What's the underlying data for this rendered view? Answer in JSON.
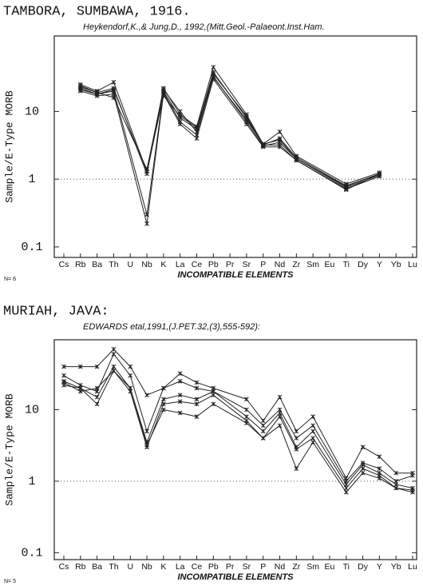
{
  "chart_data": [
    {
      "type": "line",
      "title": "TAMBORA,  SUMBAWA, 1916.",
      "subtitle": "Heykendorf,K.,& Jung,D., 1992,(Mitt.Geol.-Palaeont.Inst.Ham.",
      "ylabel": "Sample/E-Type MORB",
      "xlabel": "INCOMPATIBLE ELEMENTS",
      "note": "N= 6",
      "categories": [
        "Cs",
        "Rb",
        "Ba",
        "Th",
        "U",
        "Nb",
        "K",
        "La",
        "Ce",
        "Pb",
        "Pr",
        "Sr",
        "P",
        "Nd",
        "Zr",
        "Sm",
        "Eu",
        "Ti",
        "Dy",
        "Y",
        "Yb",
        "Lu"
      ],
      "log_scale": true,
      "ylim": [
        0.07,
        130
      ],
      "yticks": [
        0.1,
        1,
        10
      ],
      "reference_line": 1,
      "series": [
        {
          "color": "#222",
          "values": [
            null,
            25,
            20,
            27,
            null,
            1.3,
            22,
            9,
            6,
            45,
            null,
            9,
            3.3,
            5,
            2.2,
            null,
            null,
            0.85,
            null,
            1.25,
            null,
            null
          ]
        },
        {
          "color": "#222",
          "values": [
            null,
            23,
            19,
            22,
            null,
            1.2,
            20,
            8,
            5.5,
            38,
            null,
            8,
            3.2,
            4,
            2.1,
            null,
            null,
            0.8,
            null,
            1.2,
            null,
            null
          ]
        },
        {
          "color": "#222",
          "values": [
            null,
            21,
            18,
            20,
            null,
            0.3,
            19,
            7,
            4.5,
            33,
            null,
            7,
            3.1,
            3.5,
            2,
            null,
            null,
            0.75,
            null,
            1.15,
            null,
            null
          ]
        },
        {
          "color": "#222",
          "values": [
            null,
            20,
            17,
            18,
            null,
            0.22,
            18,
            6.5,
            4,
            30,
            null,
            6.5,
            3,
            3,
            1.9,
            null,
            null,
            0.7,
            null,
            1.2,
            null,
            null
          ]
        },
        {
          "color": "#222",
          "values": [
            null,
            24,
            19,
            16,
            null,
            1.4,
            21,
            10,
            5,
            36,
            null,
            8.5,
            3.2,
            3.2,
            1.9,
            null,
            null,
            0.72,
            null,
            1.1,
            null,
            null
          ]
        },
        {
          "color": "#222",
          "values": [
            null,
            22,
            18,
            21,
            null,
            1.3,
            17,
            8.5,
            5.8,
            32,
            null,
            7.5,
            3.3,
            3.8,
            2,
            null,
            null,
            0.78,
            null,
            1.2,
            null,
            null
          ]
        }
      ]
    },
    {
      "type": "line",
      "title": "MURIAH, JAVA:",
      "subtitle": "EDWARDS etal,1991,(J.PET.32,(3),555-592):",
      "ylabel": "Sample/E-Type MORB",
      "xlabel": "INCOMPATIBLE ELEMENTS",
      "note": "N= 5",
      "categories": [
        "Cs",
        "Rb",
        "Ba",
        "Th",
        "U",
        "Nb",
        "K",
        "La",
        "Ce",
        "Pb",
        "Pr",
        "Sr",
        "P",
        "Nd",
        "Zr",
        "Sm",
        "Eu",
        "Ti",
        "Dy",
        "Y",
        "Yb",
        "Lu"
      ],
      "log_scale": true,
      "ylim": [
        0.08,
        95
      ],
      "yticks": [
        0.1,
        1,
        10
      ],
      "reference_line": 1,
      "series": [
        {
          "color": "#222",
          "values": [
            40,
            40,
            40,
            70,
            40,
            16,
            20,
            32,
            24,
            20,
            null,
            14,
            7,
            15,
            5,
            8,
            null,
            1.1,
            3,
            2.2,
            1.3,
            1.3
          ]
        },
        {
          "color": "#222",
          "values": [
            30,
            22,
            18,
            60,
            30,
            5,
            20,
            25,
            20,
            18,
            null,
            10,
            6,
            10,
            4,
            6,
            null,
            1.0,
            1.8,
            1.5,
            1.0,
            1.2
          ]
        },
        {
          "color": "#222",
          "values": [
            25,
            20,
            15,
            40,
            20,
            3.5,
            14,
            16,
            14,
            18,
            null,
            8,
            5,
            9,
            3,
            5,
            null,
            0.9,
            1.7,
            1.3,
            0.9,
            0.8
          ]
        },
        {
          "color": "#222",
          "values": [
            22,
            20,
            12,
            35,
            18,
            3,
            12,
            13,
            12,
            16,
            null,
            7,
            4,
            8,
            2.8,
            4,
            null,
            0.8,
            1.5,
            1.2,
            0.8,
            0.75
          ]
        },
        {
          "color": "#222",
          "values": [
            24,
            18,
            20,
            35,
            20,
            3.2,
            10,
            9,
            8,
            12,
            null,
            6.5,
            4,
            6,
            1.5,
            3.5,
            null,
            0.7,
            1.3,
            1.1,
            0.8,
            0.7
          ]
        }
      ]
    }
  ]
}
